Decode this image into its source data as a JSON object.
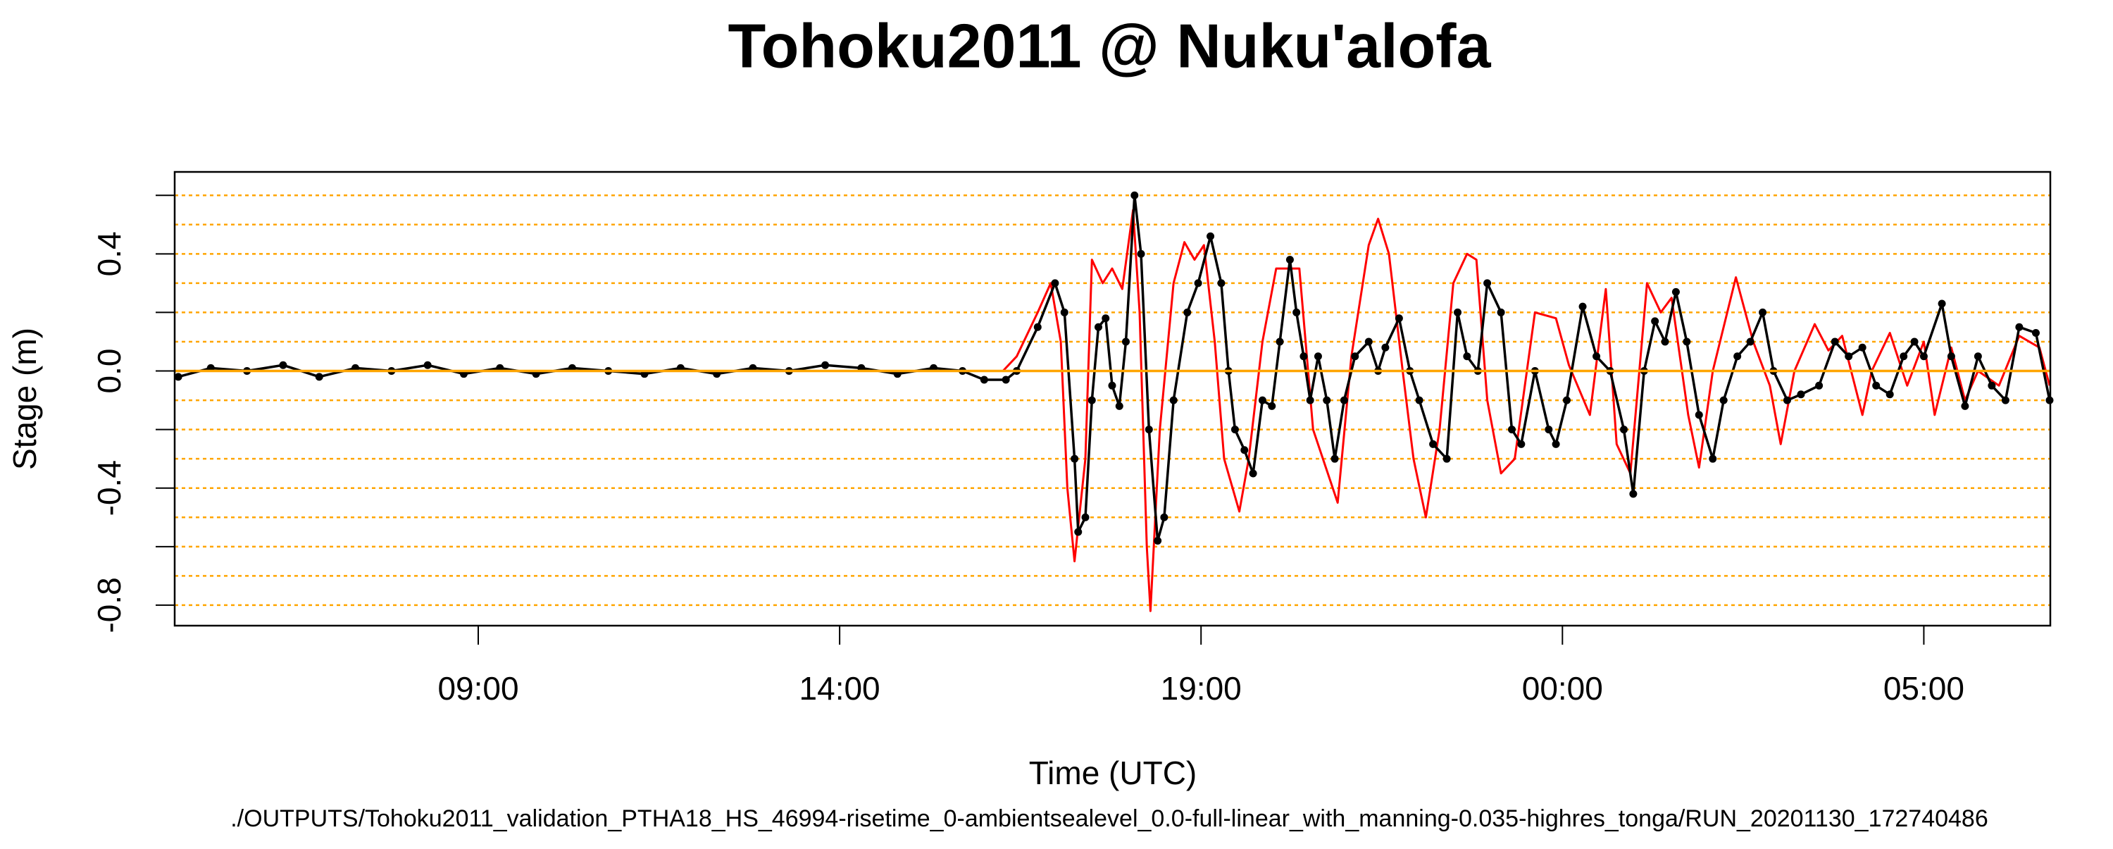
{
  "chart_data": {
    "type": "line",
    "title": "Tohoku2011 @ Nuku'alofa",
    "xlabel": "Time (UTC)",
    "ylabel": "Stage (m)",
    "footnote": "./OUTPUTS/Tohoku2011_validation_PTHA18_HS_46994-risetime_0-ambientsealevel_0.0-full-linear_with_manning-0.035-highres_tonga/RUN_20201130_172740486",
    "xlim": [
      4.8,
      30.75
    ],
    "xticks": [
      {
        "value": 9,
        "label": "09:00"
      },
      {
        "value": 14,
        "label": "14:00"
      },
      {
        "value": 19,
        "label": "19:00"
      },
      {
        "value": 24,
        "label": "00:00"
      },
      {
        "value": 29,
        "label": "05:00"
      }
    ],
    "ylim": [
      -0.87,
      0.68
    ],
    "yticks": [
      -0.8,
      -0.4,
      {
        "value": 0,
        "label": "0.0"
      },
      0.4
    ],
    "minor_yticks": [
      -0.6,
      -0.2,
      0.2,
      0.6
    ],
    "hlines": [
      -0.8,
      -0.7,
      -0.6,
      -0.5,
      -0.4,
      -0.3,
      -0.2,
      -0.1,
      0.1,
      0.2,
      0.3,
      0.4,
      0.5,
      0.6
    ],
    "hline_color": "#ffa500",
    "baseline": true,
    "series": [
      {
        "color": "#ff0000",
        "markers": false,
        "x": [
          4.81,
          16.26,
          16.45,
          16.74,
          16.92,
          17.06,
          17.15,
          17.25,
          17.4,
          17.49,
          17.64,
          17.77,
          17.91,
          18.06,
          18.15,
          18.25,
          18.3,
          18.43,
          18.62,
          18.77,
          18.91,
          19.04,
          19.19,
          19.32,
          19.53,
          19.66,
          19.85,
          20.04,
          20.19,
          20.36,
          20.55,
          20.89,
          21.08,
          21.32,
          21.45,
          21.6,
          21.79,
          21.94,
          22.11,
          22.3,
          22.49,
          22.68,
          22.81,
          22.96,
          23.15,
          23.34,
          23.62,
          23.91,
          24.09,
          24.38,
          24.6,
          24.75,
          24.94,
          25.17,
          25.36,
          25.51,
          25.74,
          25.89,
          26.08,
          26.4,
          26.64,
          26.87,
          27.02,
          27.21,
          27.49,
          27.68,
          27.87,
          28.15,
          28.28,
          28.53,
          28.77,
          29.0,
          29.15,
          29.38,
          29.57,
          29.75,
          30.04,
          30.32,
          30.6,
          30.74
        ],
        "values": [
          0,
          0,
          0.05,
          0.2,
          0.3,
          0.1,
          -0.4,
          -0.65,
          -0.3,
          0.38,
          0.3,
          0.35,
          0.28,
          0.55,
          0.2,
          -0.6,
          -0.82,
          -0.2,
          0.3,
          0.44,
          0.38,
          0.43,
          0.1,
          -0.3,
          -0.48,
          -0.3,
          0.1,
          0.35,
          0.35,
          0.35,
          -0.2,
          -0.45,
          0.05,
          0.43,
          0.52,
          0.4,
          0.0,
          -0.3,
          -0.5,
          -0.2,
          0.3,
          0.4,
          0.38,
          -0.1,
          -0.35,
          -0.3,
          0.2,
          0.18,
          0.02,
          -0.15,
          0.28,
          -0.25,
          -0.35,
          0.3,
          0.2,
          0.25,
          -0.15,
          -0.33,
          0.0,
          0.32,
          0.1,
          -0.05,
          -0.25,
          0.0,
          0.16,
          0.07,
          0.12,
          -0.15,
          0.0,
          0.13,
          -0.05,
          0.1,
          -0.15,
          0.08,
          -0.1,
          0.0,
          -0.05,
          0.12,
          0.08,
          -0.05
        ]
      },
      {
        "color": "#000000",
        "markers": true,
        "x": [
          4.85,
          5.3,
          5.8,
          6.3,
          6.8,
          7.3,
          7.8,
          8.3,
          8.8,
          9.3,
          9.8,
          10.3,
          10.8,
          11.3,
          11.8,
          12.3,
          12.8,
          13.3,
          13.8,
          14.3,
          14.8,
          15.3,
          15.7,
          16.0,
          16.3,
          16.45,
          16.74,
          16.98,
          17.11,
          17.25,
          17.3,
          17.4,
          17.49,
          17.58,
          17.68,
          17.77,
          17.87,
          17.96,
          18.08,
          18.17,
          18.28,
          18.4,
          18.49,
          18.62,
          18.81,
          18.96,
          19.13,
          19.28,
          19.38,
          19.47,
          19.6,
          19.72,
          19.85,
          19.98,
          20.09,
          20.23,
          20.32,
          20.42,
          20.51,
          20.62,
          20.74,
          20.85,
          20.98,
          21.13,
          21.32,
          21.45,
          21.55,
          21.74,
          21.89,
          22.02,
          22.21,
          22.4,
          22.55,
          22.68,
          22.83,
          22.96,
          23.15,
          23.3,
          23.43,
          23.62,
          23.81,
          23.91,
          24.06,
          24.28,
          24.47,
          24.66,
          24.85,
          24.98,
          25.13,
          25.28,
          25.42,
          25.57,
          25.72,
          25.89,
          26.08,
          26.23,
          26.42,
          26.6,
          26.77,
          26.92,
          27.11,
          27.3,
          27.55,
          27.77,
          27.96,
          28.15,
          28.34,
          28.53,
          28.72,
          28.87,
          29.0,
          29.25,
          29.38,
          29.57,
          29.75,
          29.94,
          30.13,
          30.32,
          30.55,
          30.74
        ],
        "values": [
          -0.02,
          0.01,
          0.0,
          0.02,
          -0.02,
          0.01,
          0.0,
          0.02,
          -0.01,
          0.01,
          -0.01,
          0.01,
          0.0,
          -0.01,
          0.01,
          -0.01,
          0.01,
          0.0,
          0.02,
          0.01,
          -0.01,
          0.01,
          0.0,
          -0.03,
          -0.03,
          0.0,
          0.15,
          0.3,
          0.2,
          -0.3,
          -0.55,
          -0.5,
          -0.1,
          0.15,
          0.18,
          -0.05,
          -0.12,
          0.1,
          0.6,
          0.4,
          -0.2,
          -0.58,
          -0.5,
          -0.1,
          0.2,
          0.3,
          0.46,
          0.3,
          0.0,
          -0.2,
          -0.27,
          -0.35,
          -0.1,
          -0.12,
          0.1,
          0.38,
          0.2,
          0.05,
          -0.1,
          0.05,
          -0.1,
          -0.3,
          -0.1,
          0.05,
          0.1,
          0.0,
          0.08,
          0.18,
          0.0,
          -0.1,
          -0.25,
          -0.3,
          0.2,
          0.05,
          0.0,
          0.3,
          0.2,
          -0.2,
          -0.25,
          0.0,
          -0.2,
          -0.25,
          -0.1,
          0.22,
          0.05,
          0.0,
          -0.2,
          -0.42,
          0.0,
          0.17,
          0.1,
          0.27,
          0.1,
          -0.15,
          -0.3,
          -0.1,
          0.05,
          0.1,
          0.2,
          0.0,
          -0.1,
          -0.08,
          -0.05,
          0.1,
          0.05,
          0.08,
          -0.05,
          -0.08,
          0.05,
          0.1,
          0.05,
          0.23,
          0.05,
          -0.12,
          0.05,
          -0.05,
          -0.1,
          0.15,
          0.13,
          -0.1
        ]
      }
    ]
  }
}
